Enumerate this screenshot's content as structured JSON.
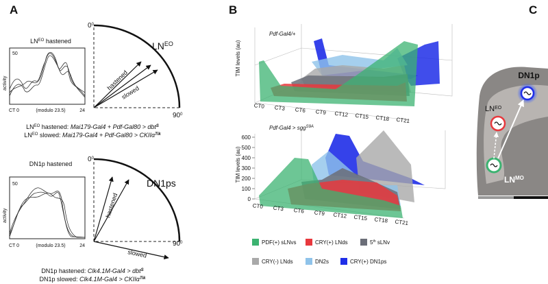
{
  "panel_a": {
    "label": "A",
    "top": {
      "title": [
        "LN",
        "EO",
        " hastened"
      ],
      "y_tick": 50,
      "y_label": "activity",
      "x_labels": [
        "CT 0",
        "(modulo 23.5)",
        "24"
      ],
      "dial": {
        "top": [
          "0",
          "0"
        ],
        "right": [
          "90",
          "0"
        ],
        "name": [
          "LN",
          "EO"
        ],
        "arrows": [
          "hastened",
          "slowed"
        ]
      },
      "caption": [
        [
          "LN",
          "EO",
          " hastened: ",
          "Mai179-Gal4 + Pdf-Gal80 > dbt",
          "S"
        ],
        [
          "LN",
          "EO",
          " slowed: ",
          "Mai179-Gal4 + Pdf-Gal80 > CKIIα",
          "Tik"
        ]
      ]
    },
    "bottom": {
      "title": "DN1p hastened",
      "y_tick": 50,
      "y_label": "activity",
      "x_labels": [
        "CT 0",
        "(modulo 23.5)",
        "24"
      ],
      "dial": {
        "top": [
          "0",
          "0"
        ],
        "right": [
          "90",
          "0"
        ],
        "name": "DN1ps",
        "arrows": [
          "hastened",
          "slowed"
        ]
      },
      "caption": [
        [
          "DN1p hastened: ",
          "Clk4.1M-Gal4 > dbt",
          "S"
        ],
        [
          "DN1p slowed: ",
          "Clk4.1M-Gal4 > CKIIα",
          "Tik"
        ]
      ]
    }
  },
  "panel_b": {
    "label": "B",
    "top": {
      "genotype": "Pdf-Gal4/+",
      "y_label": "TIM levels (au)",
      "x_labels": [
        "CT0",
        "CT3",
        "CT6",
        "CT9",
        "CT12",
        "CT15",
        "CT18",
        "CT21"
      ]
    },
    "bottom": {
      "genotype": [
        "Pdf-Gal4 > sgg",
        "S9A"
      ],
      "y_label": "TIM levels (au)",
      "y_ticks": [
        0,
        100,
        200,
        300,
        400,
        500,
        600
      ],
      "x_labels": [
        "CT0",
        "CT3",
        "CT6",
        "CT9",
        "CT12",
        "CT15",
        "CT18",
        "CT21"
      ]
    },
    "legend": [
      {
        "name": [
          "PDF(+) sLNvs"
        ],
        "color": "#3cb371"
      },
      {
        "name": [
          "CRY(+) LNds"
        ],
        "color": "#e8383d"
      },
      {
        "name": [
          "5",
          "th",
          " sLNv"
        ],
        "color": "#6b6e78"
      },
      {
        "name": [
          "CRY(-) LNds"
        ],
        "color": "#a9a9a9"
      },
      {
        "name": [
          "DN2s"
        ],
        "color": "#8fc3ea"
      },
      {
        "name": [
          "CRY(+) DN1ps"
        ],
        "color": "#1f2ee8"
      }
    ]
  },
  "panel_c": {
    "label": "C",
    "dn1p": "DN1p",
    "ln_eo": [
      "LN",
      "EO"
    ],
    "ln_mo": [
      "LN",
      "MO"
    ]
  }
}
